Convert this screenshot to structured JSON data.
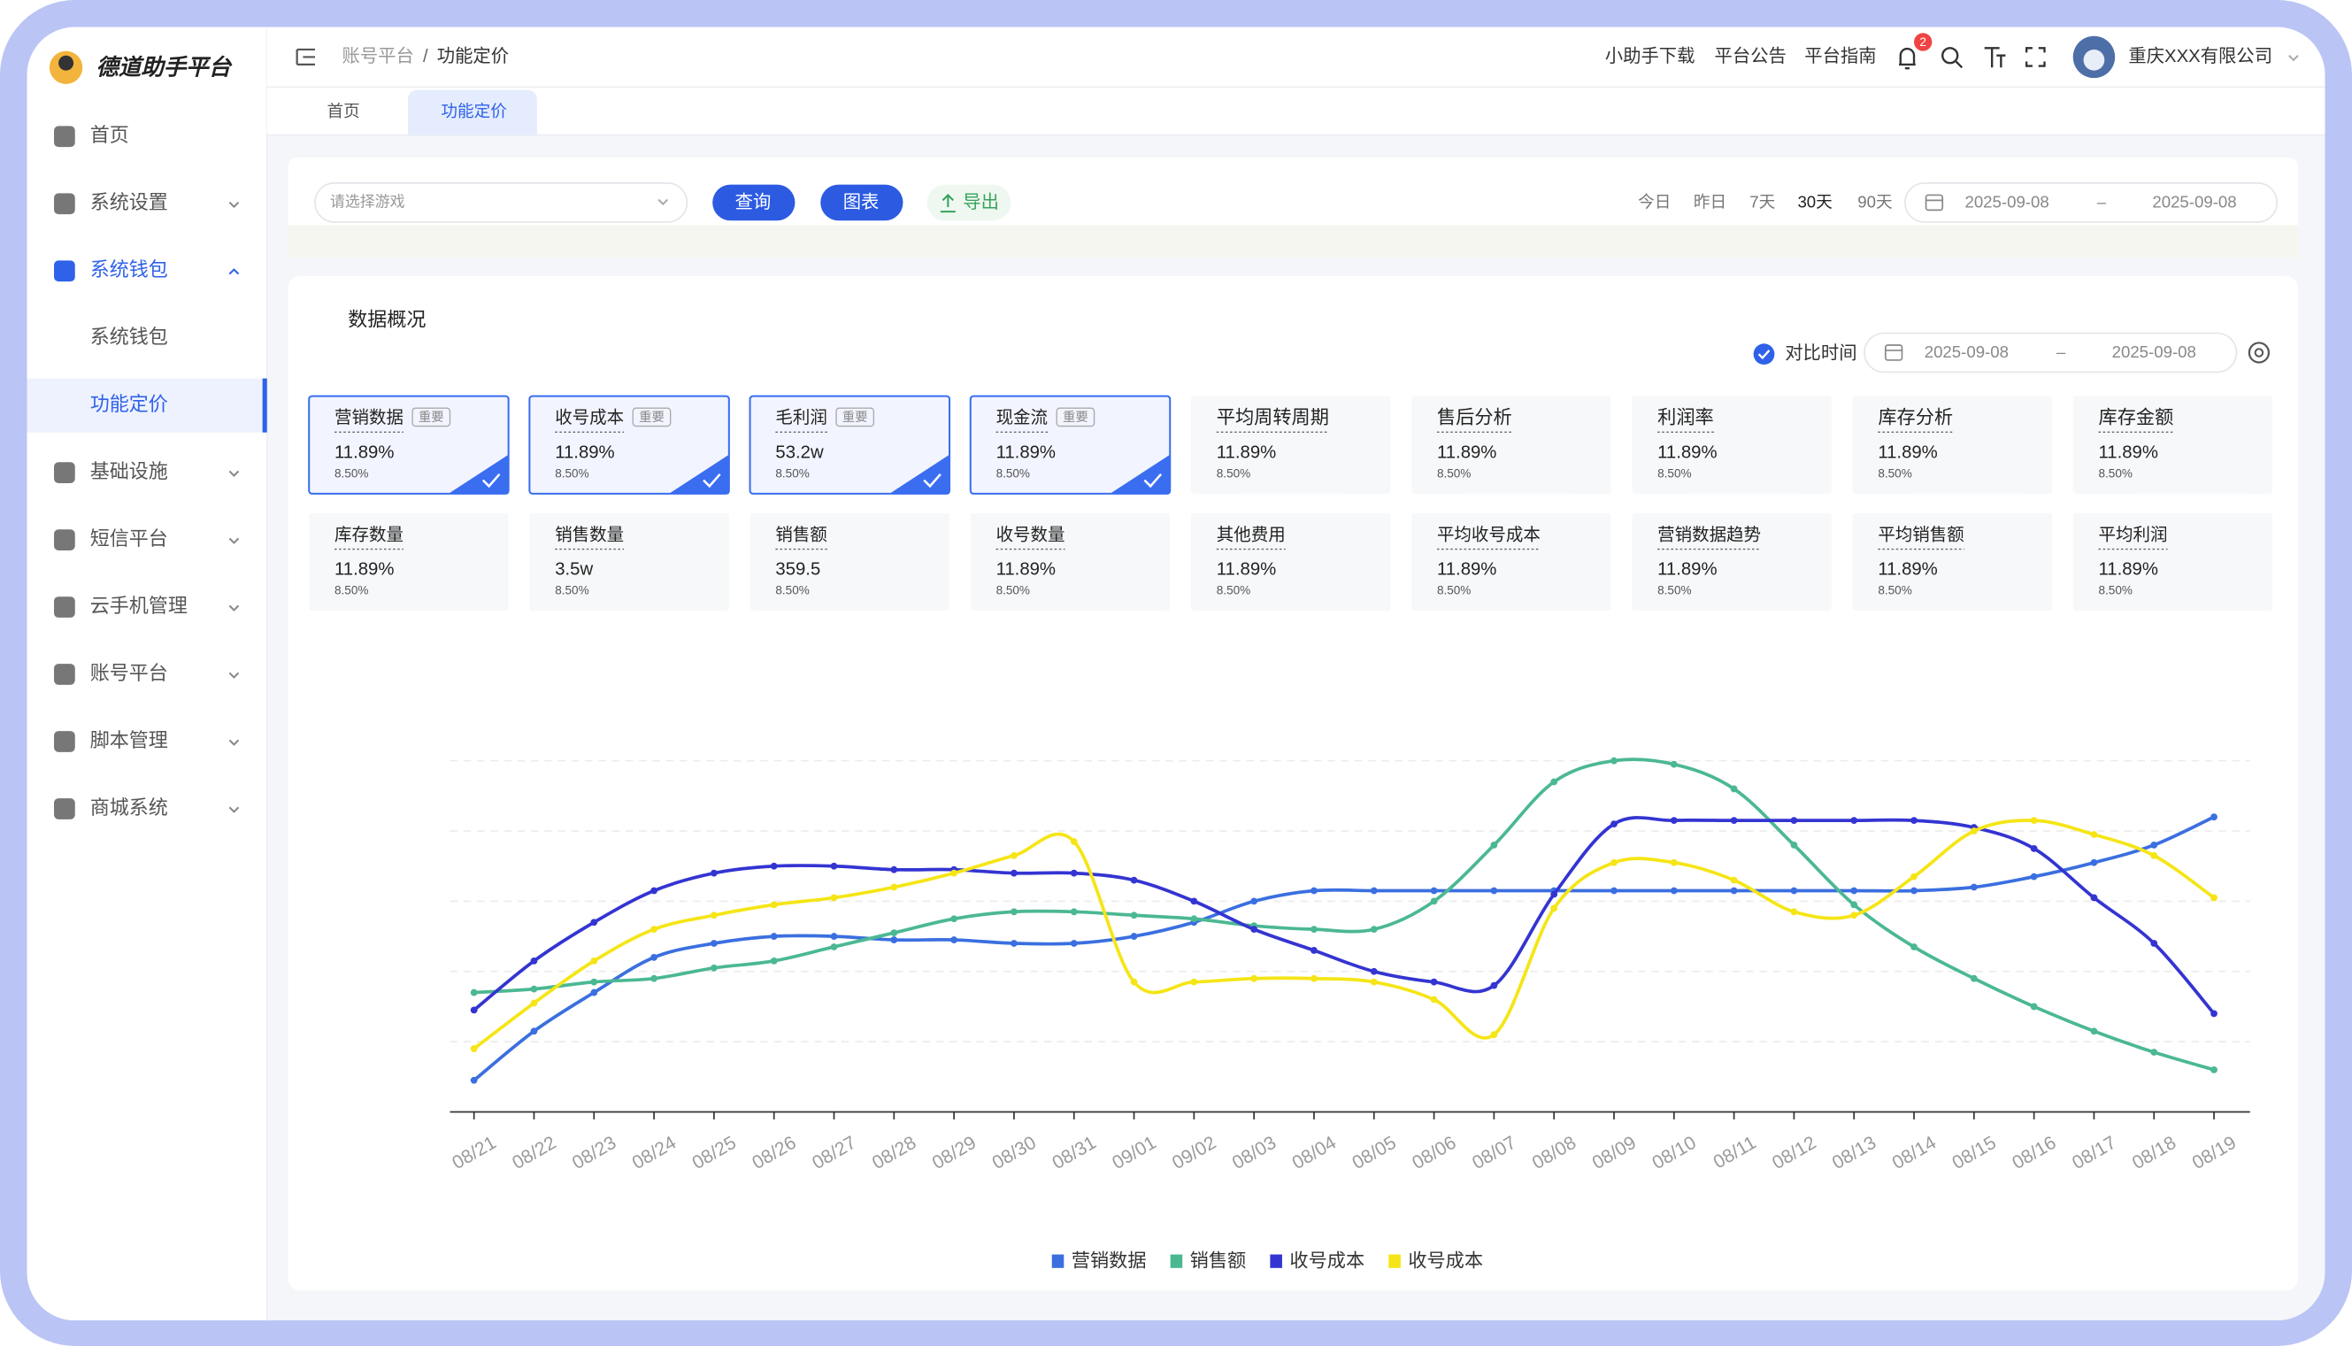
{
  "brand": "德道助手平台",
  "menu": [
    {
      "label": "首页"
    },
    {
      "label": "系统设置",
      "expanded": false
    },
    {
      "label": "系统钱包",
      "expanded": true,
      "children": [
        {
          "label": "系统钱包"
        },
        {
          "label": "功能定价",
          "active": true
        }
      ]
    },
    {
      "label": "基础设施",
      "expanded": false
    },
    {
      "label": "短信平台",
      "expanded": false
    },
    {
      "label": "云手机管理",
      "expanded": false
    },
    {
      "label": "账号平台",
      "expanded": false
    },
    {
      "label": "脚本管理",
      "expanded": false
    },
    {
      "label": "商城系统",
      "expanded": false
    }
  ],
  "header": {
    "breadcrumb": [
      "账号平台",
      "功能定价"
    ],
    "separator": "/",
    "links": [
      "小助手下载",
      "平台公告",
      "平台指南"
    ],
    "notifications": "2",
    "company": "重庆XXX有限公司"
  },
  "tabs": [
    {
      "label": "首页"
    },
    {
      "label": "功能定价",
      "active": true
    }
  ],
  "filter": {
    "game_placeholder": "请选择游戏",
    "buttons": [
      "查询",
      "图表"
    ],
    "export": "导出",
    "ranges": [
      {
        "label": "今日"
      },
      {
        "label": "昨日"
      },
      {
        "label": "7天"
      },
      {
        "label": "30天",
        "active": true
      },
      {
        "label": "90天"
      }
    ],
    "date_start": "2025-09-08",
    "date_sep": "–",
    "date_end": "2025-09-08"
  },
  "overview": {
    "title": "数据概况",
    "compare": {
      "label": "对比时间",
      "checked": true,
      "date_start": "2025-09-08",
      "date_sep": "–",
      "date_end": "2025-09-08"
    },
    "cards": [
      {
        "title": "营销数据",
        "tag": "重要",
        "value": "11.89%",
        "change": "8.50%",
        "selected": true
      },
      {
        "title": "收号成本",
        "tag": "重要",
        "value": "11.89%",
        "change": "8.50%",
        "selected": true
      },
      {
        "title": "毛利润",
        "tag": "重要",
        "value": "53.2w",
        "change": "8.50%",
        "selected": true
      },
      {
        "title": "现金流",
        "tag": "重要",
        "value": "11.89%",
        "change": "8.50%",
        "selected": true
      },
      {
        "title": "平均周转周期",
        "value": "11.89%",
        "change": "8.50%"
      },
      {
        "title": "售后分析",
        "value": "11.89%",
        "change": "8.50%"
      },
      {
        "title": "利润率",
        "value": "11.89%",
        "change": "8.50%"
      },
      {
        "title": "库存分析",
        "value": "11.89%",
        "change": "8.50%"
      },
      {
        "title": "库存金额",
        "value": "11.89%",
        "change": "8.50%"
      },
      {
        "title": "库存数量",
        "value": "11.89%",
        "change": "8.50%"
      },
      {
        "title": "销售数量",
        "value": "3.5w",
        "change": "8.50%"
      },
      {
        "title": "销售额",
        "value": "359.5",
        "change": "8.50%"
      },
      {
        "title": "收号数量",
        "value": "11.89%",
        "change": "8.50%"
      },
      {
        "title": "其他费用",
        "value": "11.89%",
        "change": "8.50%"
      },
      {
        "title": "平均收号成本",
        "value": "11.89%",
        "change": "8.50%"
      },
      {
        "title": "营销数据趋势",
        "value": "11.89%",
        "change": "8.50%"
      },
      {
        "title": "平均销售额",
        "value": "11.89%",
        "change": "8.50%"
      },
      {
        "title": "平均利润",
        "value": "11.89%",
        "change": "8.50%"
      }
    ]
  },
  "chart_data": {
    "type": "line",
    "grid": true,
    "ylim": [
      0,
      100
    ],
    "categories": [
      "08/21",
      "08/22",
      "08/23",
      "08/24",
      "08/25",
      "08/26",
      "08/27",
      "08/28",
      "08/29",
      "08/30",
      "08/31",
      "09/01",
      "09/02",
      "08/03",
      "08/04",
      "08/05",
      "08/06",
      "08/07",
      "08/08",
      "08/09",
      "08/10",
      "08/11",
      "08/12",
      "08/13",
      "08/14",
      "08/15",
      "08/16",
      "08/17",
      "08/18",
      "08/19"
    ],
    "series": [
      {
        "name": "营销数据",
        "color": "#3b6fe0",
        "values": [
          9,
          23,
          34,
          44,
          48,
          50,
          50,
          49,
          49,
          48,
          48,
          50,
          54,
          60,
          63,
          63,
          63,
          63,
          63,
          63,
          63,
          63,
          63,
          63,
          63,
          64,
          67,
          71,
          76,
          84
        ]
      },
      {
        "name": "销售额",
        "color": "#4bb892",
        "values": [
          34,
          35,
          37,
          38,
          41,
          43,
          47,
          51,
          55,
          57,
          57,
          56,
          55,
          53,
          52,
          52,
          60,
          76,
          94,
          100,
          99,
          92,
          76,
          59,
          47,
          38,
          30,
          23,
          17,
          12
        ]
      },
      {
        "name": "收号成本",
        "color": "#3434d2",
        "values": [
          29,
          43,
          54,
          63,
          68,
          70,
          70,
          69,
          69,
          68,
          68,
          66,
          60,
          52,
          46,
          40,
          37,
          36,
          62,
          82,
          83,
          83,
          83,
          83,
          83,
          81,
          75,
          61,
          48,
          28
        ]
      },
      {
        "name": "收号成本",
        "color": "#f5e516",
        "values": [
          18,
          31,
          43,
          52,
          56,
          59,
          61,
          64,
          68,
          73,
          77,
          37,
          37,
          38,
          38,
          37,
          32,
          22,
          58,
          71,
          71,
          66,
          57,
          56,
          67,
          80,
          83,
          79,
          73,
          61
        ]
      }
    ]
  }
}
